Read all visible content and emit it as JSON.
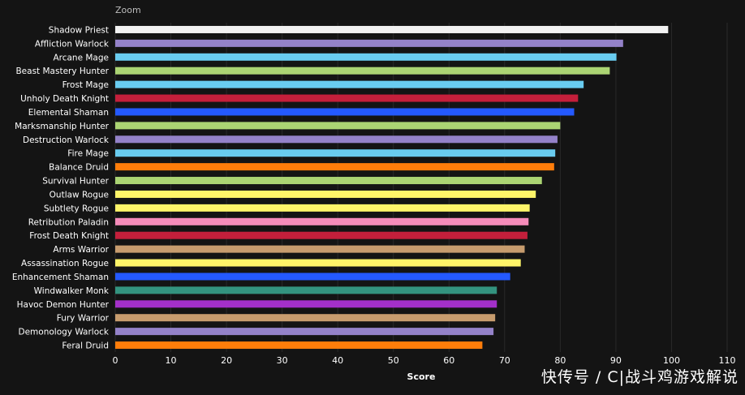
{
  "zoom_label": "Zoom",
  "watermark": "快传号 / C|战斗鸡游戏解说",
  "chart_data": {
    "type": "bar",
    "orientation": "horizontal",
    "xlabel": "Score",
    "xlim": [
      0,
      110
    ],
    "xticks": [
      0,
      10,
      20,
      30,
      40,
      50,
      60,
      70,
      80,
      90,
      100,
      110
    ],
    "grid": true,
    "categories": [
      "Shadow Priest",
      "Affliction Warlock",
      "Arcane Mage",
      "Beast Mastery Hunter",
      "Frost Mage",
      "Unholy Death Knight",
      "Elemental Shaman",
      "Marksmanship Hunter",
      "Destruction Warlock",
      "Fire Mage",
      "Balance Druid",
      "Survival Hunter",
      "Outlaw Rogue",
      "Subtlety Rogue",
      "Retribution Paladin",
      "Frost Death Knight",
      "Arms Warrior",
      "Assassination Rogue",
      "Enhancement Shaman",
      "Windwalker Monk",
      "Havoc Demon Hunter",
      "Fury Warrior",
      "Demonology Warlock",
      "Feral Druid"
    ],
    "values": [
      99.4,
      91.3,
      90.1,
      88.9,
      84.2,
      83.2,
      82.5,
      80.0,
      79.5,
      79.1,
      78.9,
      76.7,
      75.6,
      74.5,
      74.3,
      74.1,
      73.6,
      72.9,
      71.0,
      68.6,
      68.6,
      68.3,
      68.0,
      66.0
    ],
    "colors": [
      "#f2f2f2",
      "#9482c9",
      "#69ccf0",
      "#abd473",
      "#69ccf0",
      "#c41f3b",
      "#2459ff",
      "#abd473",
      "#9482c9",
      "#69ccf0",
      "#ff7d0a",
      "#abd473",
      "#fff569",
      "#fff569",
      "#f58cba",
      "#c41f3b",
      "#c79c6e",
      "#fff569",
      "#2459ff",
      "#33937f",
      "#a330c9",
      "#c79c6e",
      "#9482c9",
      "#ff7d0a"
    ]
  }
}
